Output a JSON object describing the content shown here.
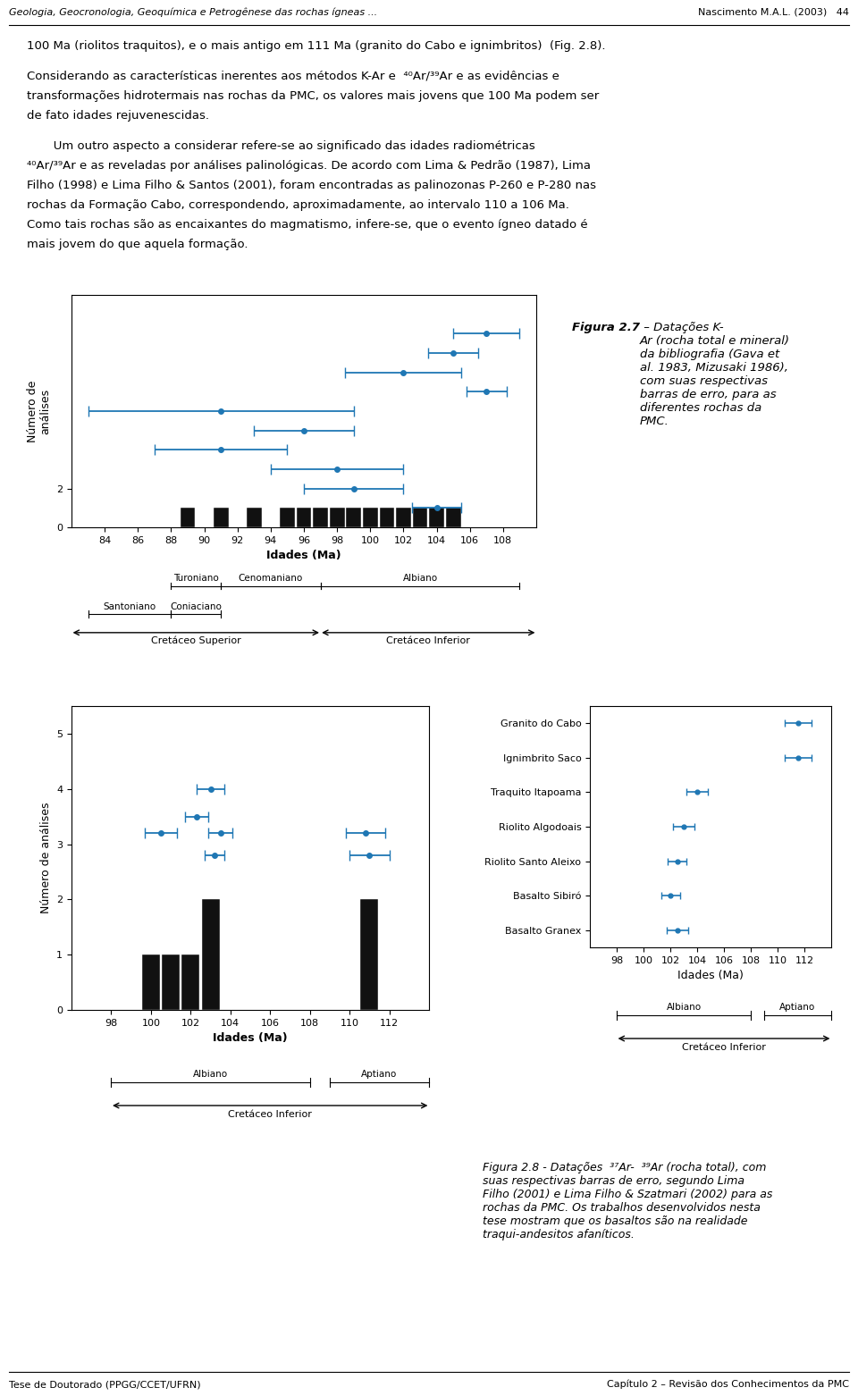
{
  "page": {
    "header_left": "Geologia, Geocronologia, Geoquímica e Petrogênese das rochas ígneas ...",
    "header_right": "Nascimento M.A.L. (2003)   44",
    "footer_left": "Tese de Doutorado (PPGG/CCET/UFRN)",
    "footer_right": "Capítulo 2 – Revisão dos Conhecimentos da PMC",
    "paragraphs": [
      [
        "100 Ma (riolitos traquitos), e o mais antigo em 111 Ma (granito do Cabo e ignimbritos)  (Fig. 2.8)."
      ],
      [
        "Considerando as características inerentes aos métodos K-Ar e  ⁴⁰Ar/³⁹Ar e as evidências e",
        "transformações hidrotermais nas rochas da PMC, os valores mais jovens que 100 Ma podem ser",
        "de fato idades rejuvenescidas."
      ],
      [
        "       Um outro aspecto a considerar refere-se ao significado das idades radiométricas",
        "⁴⁰Ar/³⁹Ar e as reveladas por análises palinológicas. De acordo com Lima & Pedrão (1987), Lima",
        "Filho (1998) e Lima Filho & Santos (2001), foram encontradas as palinozonas P-260 e P-280 nas",
        "rochas da Formação Cabo, correspondendo, aproximadamente, ao intervalo 110 a 106 Ma.",
        "Como tais rochas são as encaixantes do magmatismo, infere-se, que o evento ígneo datado é",
        "mais jovem do que aquela formação."
      ]
    ]
  },
  "chart_data": [
    {
      "type": "bar",
      "caption_title": "Figura 2.7",
      "caption": " – Datações K-\nAr (rocha total e mineral)\nda bibliografia (Gava et\nal. 1983, Mizusaki 1986),\ncom suas respectivas\nbarras de erro, para as\ndiferentes rochas da\nPMC.",
      "xlabel": "Idades (Ma)",
      "ylabel": "Número de\nanálises",
      "xlim": [
        82,
        110
      ],
      "xticks": [
        84,
        86,
        88,
        90,
        92,
        94,
        96,
        98,
        100,
        102,
        104,
        106,
        108
      ],
      "ylim": [
        0,
        12
      ],
      "yticks": [
        0,
        2
      ],
      "bars": {
        "x": [
          89,
          91,
          93,
          95,
          96,
          97,
          98,
          99,
          100,
          101,
          102,
          103,
          104,
          105
        ],
        "values": [
          1,
          1,
          1,
          1,
          1,
          1,
          1,
          1,
          1,
          1,
          1,
          1,
          1,
          1
        ],
        "color": "#111111"
      },
      "errorbars": {
        "x": [
          107,
          105,
          102,
          107,
          91,
          96,
          91,
          98,
          99,
          104
        ],
        "y": [
          10,
          9,
          8,
          7,
          6,
          5,
          4,
          3,
          2,
          1
        ],
        "xerr": [
          2.0,
          1.5,
          3.5,
          1.2,
          8.0,
          3.0,
          4.0,
          4.0,
          3.0,
          1.5
        ]
      },
      "stages": [
        [
          {
            "label": "Turoniano",
            "start": 88,
            "end": 91
          },
          {
            "label": "Cenomaniano",
            "start": 91,
            "end": 97
          },
          {
            "label": "Albiano",
            "start": 97,
            "end": 109
          }
        ],
        [
          {
            "label": "Santoniano",
            "start": 83,
            "end": 88
          },
          {
            "label": "Coniaciano",
            "start": 88,
            "end": 91
          }
        ]
      ],
      "epochs": [
        {
          "label": "Cretáceo Superior",
          "start": 82,
          "end": 97
        },
        {
          "label": "Cretáceo Inferior",
          "start": 97,
          "end": 110
        }
      ]
    },
    {
      "type": "bar",
      "caption": "Figura 2.8 - Datações  ³⁷Ar-  ³⁹Ar (rocha total), com\nsuas respectivas barras de erro, segundo Lima\nFilho (2001) e Lima Filho & Szatmari (2002) para as\nrochas da PMC. Os trabalhos desenvolvidos nesta\ntese mostram que os basaltos são na realidade\ntraqui-andesitos afaníticos.",
      "xlabel": "Idades (Ma)",
      "ylabel": "Número de análises",
      "xlim": [
        96,
        114
      ],
      "xticks": [
        98,
        100,
        102,
        104,
        106,
        108,
        110,
        112
      ],
      "ylim": [
        0,
        5.5
      ],
      "yticks": [
        0,
        1,
        2,
        3,
        4,
        5
      ],
      "bars": {
        "x": [
          100,
          101,
          102,
          103,
          111
        ],
        "values": [
          1,
          1,
          1,
          2,
          2
        ],
        "color": "#111111"
      },
      "errorbars": {
        "x": [
          100.5,
          102.3,
          103.0,
          103.5,
          103.2,
          110.8,
          111.0
        ],
        "y": [
          3.2,
          3.5,
          4.0,
          3.2,
          2.8,
          3.2,
          2.8
        ],
        "xerr": [
          0.8,
          0.6,
          0.7,
          0.6,
          0.5,
          1.0,
          1.0
        ]
      },
      "stages": [
        [
          {
            "label": "Albiano",
            "start": 98,
            "end": 108
          },
          {
            "label": "Aptiano",
            "start": 109,
            "end": 114
          }
        ]
      ],
      "epochs": [
        {
          "label": "Cretáceo Inferior",
          "start": 98,
          "end": 114
        }
      ]
    },
    {
      "type": "errorbar",
      "categories": [
        "Granito do Cabo",
        "Ignimbrito Saco",
        "Traquito Itapoama",
        "Riolito Algodoais",
        "Riolito Santo Aleixo",
        "Basalto Sibiró",
        "Basalto Granex"
      ],
      "values": [
        111.5,
        111.5,
        104.0,
        103.0,
        102.5,
        102.0,
        102.5
      ],
      "xerr": [
        1.0,
        1.0,
        0.8,
        0.8,
        0.7,
        0.7,
        0.8
      ],
      "xlabel": "Idades (Ma)",
      "xlim": [
        96,
        114
      ],
      "xticks": [
        98,
        100,
        102,
        104,
        106,
        108,
        110,
        112
      ],
      "stages": [
        [
          {
            "label": "Albiano",
            "start": 98,
            "end": 108
          },
          {
            "label": "Aptiano",
            "start": 109,
            "end": 114
          }
        ]
      ],
      "epochs": [
        {
          "label": "Cretáceo Inferior",
          "start": 98,
          "end": 114
        }
      ]
    }
  ]
}
